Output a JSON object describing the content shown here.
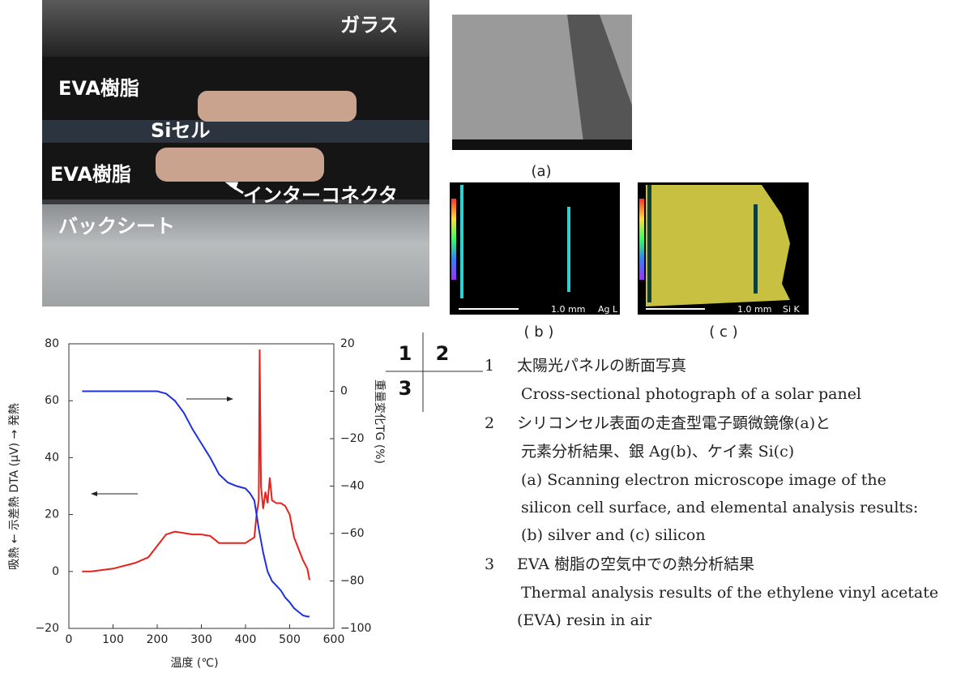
{
  "photo": {
    "labels": [
      "ガラス",
      "EVA樹脂",
      "Siセル",
      "EVA樹脂",
      "インターコネクタ",
      "バックシート"
    ]
  },
  "sem": {
    "panels": [
      "(a)",
      "( b )",
      "( c )"
    ],
    "scale_bars": [
      "1.0 mm",
      "1.0 mm"
    ],
    "elements": [
      "Ag L",
      "Si K"
    ]
  },
  "layout_key": [
    "1",
    "2",
    "3"
  ],
  "captions": [
    {
      "number": "1",
      "ja": [
        "太陽光パネルの断面写真"
      ],
      "en": [
        "Cross-sectional photograph of a solar panel"
      ]
    },
    {
      "number": "2",
      "ja": [
        "シリコンセル表面の走査型電子顕微鏡像(a)と",
        "元素分析結果、銀 Ag(b)、ケイ素 Si(c)"
      ],
      "en": [
        "(a) Scanning electron microscope image of the",
        "silicon cell surface, and elemental analysis results:",
        "(b) silver and (c) silicon"
      ]
    },
    {
      "number": "3",
      "ja": [
        "EVA 樹脂の空気中での熱分析結果"
      ],
      "en": [
        "Thermal analysis results of the ethylene vinyl acetate",
        "(EVA) resin in air"
      ]
    }
  ],
  "chart_data": {
    "type": "line",
    "xlabel": "温度 (℃)",
    "ylabel": "吸熱 ← 示差熱 DTA (μV) → 発熱",
    "y2label": "重量変化TG (%)",
    "x": [
      30,
      50,
      100,
      150,
      180,
      200,
      220,
      240,
      260,
      280,
      300,
      320,
      340,
      360,
      380,
      400,
      410,
      420,
      425,
      430,
      432,
      435,
      440,
      445,
      450,
      455,
      460,
      470,
      480,
      490,
      500,
      510,
      520,
      530,
      540,
      545
    ],
    "series": [
      {
        "color": "#e8201c",
        "values": [
          0,
          0,
          1,
          3,
          5,
          9,
          13,
          14,
          13.5,
          13,
          13,
          12.5,
          10,
          10,
          10,
          10,
          11,
          12,
          20,
          25,
          78,
          30,
          22,
          28,
          24,
          33,
          25,
          24,
          24,
          23,
          20,
          12,
          8,
          4,
          1,
          -3
        ]
      },
      {
        "color": "#2030e0",
        "axis": "y2",
        "values": [
          0,
          0,
          0,
          0,
          0,
          0,
          -1,
          -4,
          -9,
          -16,
          -22,
          -28,
          -35,
          -38.5,
          -40,
          -41,
          -43,
          -46,
          -52,
          -58,
          -60,
          -63,
          -68,
          -72,
          -76,
          -78,
          -80,
          -82,
          -84,
          -87,
          -89,
          -91.5,
          -93,
          -94.5,
          -95,
          -95
        ]
      }
    ],
    "xlim": [
      0,
      600
    ],
    "xticks": [
      0,
      100,
      200,
      300,
      400,
      500,
      600
    ],
    "ylim": [
      -20,
      80
    ],
    "yticks": [
      {
        "value": -20,
        "label": "−20"
      },
      0,
      20,
      40,
      60,
      80
    ],
    "y2lim": [
      -100,
      20
    ],
    "y2ticks": [
      {
        "value": -100,
        "label": "−100"
      },
      {
        "value": -80,
        "label": "−80"
      },
      {
        "value": -60,
        "label": "−60"
      },
      {
        "value": -40,
        "label": "−40"
      },
      {
        "value": -20,
        "label": "−20"
      },
      0,
      20
    ]
  }
}
